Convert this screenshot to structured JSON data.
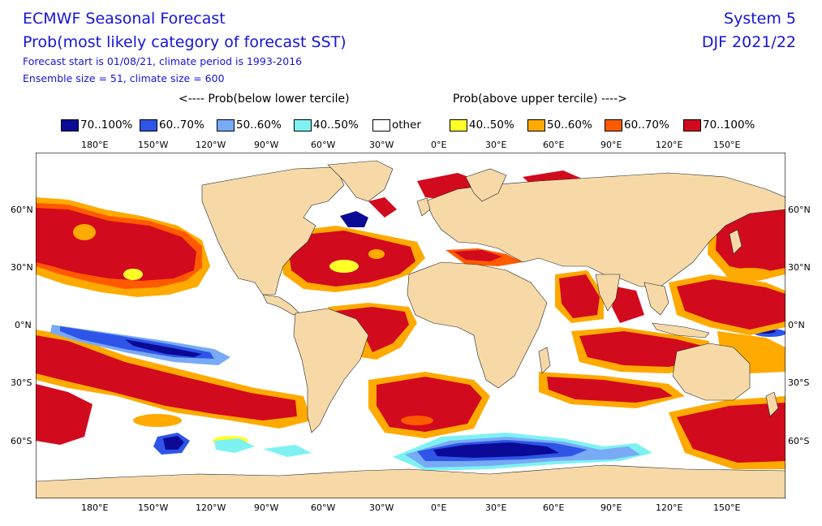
{
  "header": {
    "title": "ECMWF Seasonal Forecast",
    "subtitle": "Prob(most likely category of forecast SST)",
    "line3": "Forecast start is 01/08/21, climate period is 1993-2016",
    "line4": "Ensemble size = 51, climate size = 600",
    "system": "System 5",
    "period": "DJF 2021/22"
  },
  "legend": {
    "below_label": "<---- Prob(below lower tercile)",
    "above_label": "Prob(above upper tercile) ---->",
    "items": [
      {
        "label": "70..100%",
        "color": "#0a0a96"
      },
      {
        "label": "60..70%",
        "color": "#2e55e8"
      },
      {
        "label": "50..60%",
        "color": "#78aaf5"
      },
      {
        "label": "40..50%",
        "color": "#7ef2f2"
      },
      {
        "label": "other",
        "color": "#ffffff"
      },
      {
        "label": "40..50%",
        "color": "#ffff28"
      },
      {
        "label": "50..60%",
        "color": "#ffaa00"
      },
      {
        "label": "60..70%",
        "color": "#ff5a00"
      },
      {
        "label": "70..100%",
        "color": "#d20a1e"
      }
    ]
  },
  "axes": {
    "lon_ticks": [
      "180°E",
      "150°W",
      "120°W",
      "90°W",
      "60°W",
      "30°W",
      "0°E",
      "30°E",
      "60°E",
      "90°E",
      "120°E",
      "150°E"
    ],
    "lat_ticks": [
      "60°N",
      "30°N",
      "0°N",
      "30°S",
      "60°S"
    ]
  },
  "colors": {
    "land": "#f7d9a8",
    "ocean_other": "#ffffff"
  }
}
